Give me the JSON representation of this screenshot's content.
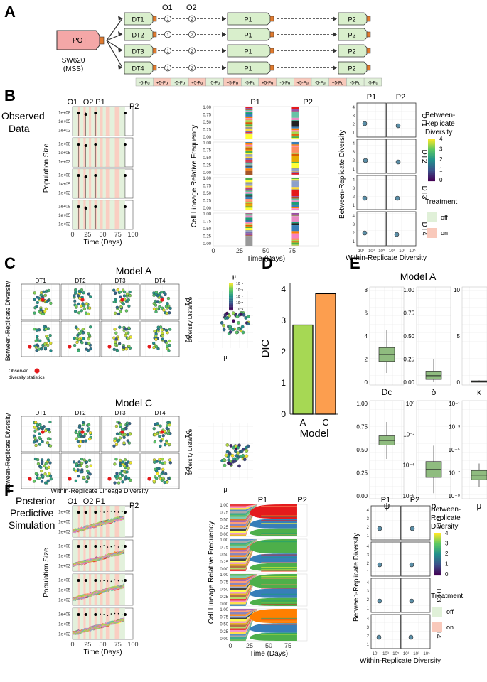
{
  "panel_letters": {
    "a": "A",
    "b": "B",
    "c": "C",
    "d": "D",
    "e": "E",
    "f": "F"
  },
  "panel_a": {
    "source_flask": "POT",
    "cell_line": "SW620",
    "cell_line_sub": "(MSS)",
    "flasks": [
      "DT1",
      "DT2",
      "DT3",
      "DT4"
    ],
    "passage_flask": "P1",
    "final_flask": "P2",
    "labels": {
      "o1": "O1",
      "o2": "O2"
    },
    "o1_marks": [
      "1",
      "1",
      "1",
      "1"
    ],
    "o2_marks": [
      "2",
      "2",
      "2",
      "2"
    ],
    "schedule": [
      "-5-Fu",
      "+5-Fu",
      "-5-Fu",
      "+5-Fu",
      "-5-Fu",
      "+5-Fu",
      "-5-Fu",
      "+5-Fu",
      "-5-Fu",
      "+5-Fu",
      "-5-Fu",
      "+5-Fu",
      "-5-Fu",
      "-5-Fu"
    ],
    "colors": {
      "flask_green": "#d9efcc",
      "flask_red": "#f4a7a7",
      "on": "#f9c9bb",
      "off": "#e0f0d8"
    }
  },
  "panel_b": {
    "title": "Observed Data",
    "title_l1": "Observed",
    "title_l2": "Data",
    "ylabel_pop": "Population Size",
    "xlabel_time": "Time (Days)",
    "ylabel_freq": "Cell Lineage Relative Frequency",
    "ylabel_brd": "Between-Replicate Diversity",
    "xlabel_wrd": "Within-Replicate Diversity",
    "pop_ticks": [
      "1e+08",
      "1e+05",
      "1e+02"
    ],
    "time_ticks": [
      "0",
      "25",
      "50",
      "75",
      "100"
    ],
    "time_ticks_short": [
      "0",
      "25",
      "50",
      "75"
    ],
    "freq_ticks": [
      "1.00",
      "0.75",
      "0.50",
      "0.25",
      "0.00"
    ],
    "markers": {
      "o1": "O1",
      "o2": "O2",
      "p1": "P1",
      "p2": "P2"
    },
    "brd_ticks": [
      "4",
      "3",
      "2",
      "1"
    ],
    "wrd_ticks": [
      "10¹",
      "10³",
      "10⁵",
      "10¹",
      "10³",
      "10⁵"
    ],
    "replicates": [
      "DT1",
      "DT2",
      "DT3",
      "DT4"
    ],
    "legend": {
      "title_l1": "Between-",
      "title_l2": "Replicate",
      "title_l3": "Diversity",
      "ticks": [
        "4",
        "3",
        "2",
        "1",
        "0"
      ],
      "treatment_title": "Treatment",
      "off": "off",
      "on": "on"
    }
  },
  "panel_c": {
    "model_a": "Model A",
    "model_c": "Model C",
    "replicates": [
      "DT1",
      "DT2",
      "DT3",
      "DT4"
    ],
    "rows": [
      "P1",
      "P2"
    ],
    "ylabel": "Between-Replicate Diversity",
    "xlabel": "Within-Replicate Lineage Diversity",
    "obs_l1": "Observed",
    "obs_l2": "diversity statistics",
    "side_ylabel": "Diversity Distance",
    "side_xlabel": "μ",
    "mu_title": "μ",
    "mu_ticks": [
      "10⁻⁵",
      "10⁻⁶",
      "10⁻⁷",
      "10⁻⁸",
      "10⁻⁹"
    ]
  },
  "panel_d": {
    "chart_data": {
      "type": "bar",
      "categories": [
        "A",
        "C"
      ],
      "values": [
        2.85,
        3.85
      ],
      "ylabel": "DIC",
      "xlabel": "Model",
      "ylim": [
        0,
        4.2
      ],
      "yticks": [
        "4",
        "3",
        "2",
        "1",
        "0"
      ],
      "colors": [
        "#a6d854",
        "#fc9e4f"
      ]
    }
  },
  "panel_e": {
    "title": "Model A",
    "chart_data": {
      "type": "box",
      "params": [
        {
          "name": "Dc",
          "yticks": [
            "8",
            "6",
            "4",
            "2",
            "0"
          ],
          "median": 2.4,
          "q1": 1.8,
          "q3": 3.0,
          "whisker_lo": 0.8,
          "whisker_hi": 4.5,
          "range": [
            0,
            8
          ]
        },
        {
          "name": "δ",
          "yticks": [
            "1.00",
            "0.75",
            "0.50",
            "0.25",
            "0.00"
          ],
          "median": 0.07,
          "q1": 0.03,
          "q3": 0.12,
          "whisker_lo": 0.0,
          "whisker_hi": 0.25,
          "range": [
            0,
            1
          ]
        },
        {
          "name": "κ",
          "yticks": [
            "10",
            "5",
            "0"
          ],
          "median": 0.05,
          "q1": 0.0,
          "q3": 0.15,
          "whisker_lo": 0.0,
          "whisker_hi": 0.2,
          "range": [
            0,
            10
          ]
        },
        {
          "name": "ψ",
          "yticks": [
            "1.00",
            "0.75",
            "0.50",
            "0.25",
            "0.00"
          ],
          "median": 0.6,
          "q1": 0.55,
          "q3": 0.65,
          "whisker_lo": 0.4,
          "whisker_hi": 0.8,
          "range": [
            0,
            1
          ]
        },
        {
          "name": "ρ",
          "yticks": [
            "10⁰",
            "10⁻²",
            "10⁻⁴",
            "10⁻⁶"
          ],
          "median": -5.0,
          "q1": -5.6,
          "q3": -4.4,
          "whisker_lo": -6.8,
          "whisker_hi": -3.2,
          "range": [
            -7,
            0
          ]
        },
        {
          "name": "μ",
          "yticks": [
            "10⁻¹",
            "10⁻³",
            "10⁻⁵",
            "10⁻⁷",
            "10⁻⁹"
          ],
          "median": -7.2,
          "q1": -7.6,
          "q3": -6.8,
          "whisker_lo": -8.2,
          "whisker_hi": -6.2,
          "range": [
            -9,
            -1
          ]
        }
      ]
    }
  },
  "panel_f": {
    "title_l1": "Posterior",
    "title_l2": "Predictive",
    "title_l3": "Simulation"
  }
}
